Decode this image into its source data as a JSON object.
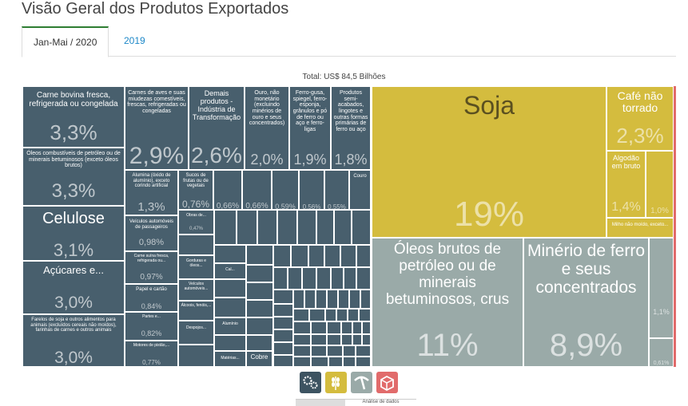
{
  "page": {
    "title": "Visão Geral dos Produtos Exportados",
    "tabs": [
      "Jan-Mai / 2020",
      "2019"
    ],
    "active_tab": 0,
    "total_label": "Total: US$ 84,5 Bilhões",
    "bottom_tab": "Análise de dados"
  },
  "colors": {
    "processed": "#485f6d",
    "agro": "#d4bc3e",
    "mining": "#9aaaa8",
    "other": "#e16b6b",
    "active_tab": "#2e7d32",
    "link": "#1e88c8"
  },
  "icons": [
    {
      "name": "industry-gears-icon",
      "color": "#3d5361"
    },
    {
      "name": "agro-wheat-icon",
      "color": "#d4bc3e"
    },
    {
      "name": "mining-pickaxe-icon",
      "color": "#9aaaa8"
    },
    {
      "name": "other-box-icon",
      "color": "#e16b6b"
    }
  ],
  "chart_data": {
    "type": "treemap",
    "title": "",
    "total": "Total: US$ 84,5 Bilhões",
    "items": [
      {
        "label": "Soja",
        "value": 19,
        "pct": "19%",
        "group": "agro"
      },
      {
        "label": "Café não torrado",
        "value": 2.3,
        "pct": "2,3%",
        "group": "agro"
      },
      {
        "label": "Algodão em bruto",
        "value": 1.4,
        "pct": "1,4%",
        "group": "agro"
      },
      {
        "label": "",
        "value": 1.0,
        "pct": "1,0%",
        "group": "agro"
      },
      {
        "label": "Milho não moído, exceto...",
        "value": 0.5,
        "pct": "",
        "group": "agro"
      },
      {
        "label": "Óleos brutos de petróleo ou de minerais betuminosos, crus",
        "value": 11,
        "pct": "11%",
        "group": "mining"
      },
      {
        "label": "Minério de ferro e seus concentrados",
        "value": 8.9,
        "pct": "8,9%",
        "group": "mining"
      },
      {
        "label": "",
        "value": 1.1,
        "pct": "1,1%",
        "group": "mining"
      },
      {
        "label": "",
        "value": 0.61,
        "pct": "0,61%",
        "group": "mining"
      },
      {
        "label": "Carne bovina fresca, refrigerada ou congelada",
        "value": 3.3,
        "pct": "3,3%",
        "group": "processed"
      },
      {
        "label": "Óleos combustíveis de petróleo ou de minerais betuminosos (exceto óleos brutos)",
        "value": 3.3,
        "pct": "3,3%",
        "group": "processed"
      },
      {
        "label": "Celulose",
        "value": 3.1,
        "pct": "3,1%",
        "group": "processed"
      },
      {
        "label": "Açúcares e...",
        "value": 3.0,
        "pct": "3,0%",
        "group": "processed"
      },
      {
        "label": "Farelos de soja e outros alimentos para animais (excluídos cereais não moídos), farinhas de carnes e outros animais",
        "value": 3.0,
        "pct": "3,0%",
        "group": "processed"
      },
      {
        "label": "Carnes de aves e suas miudezas comestíveis, frescas, refrigeradas ou congeladas",
        "value": 2.9,
        "pct": "2,9%",
        "group": "processed"
      },
      {
        "label": "Demais produtos - Indústria de Transformação",
        "value": 2.6,
        "pct": "2,6%",
        "group": "processed"
      },
      {
        "label": "Ouro, não monetário (excluindo minérios de ouro e seus concentrados)",
        "value": 2.0,
        "pct": "2,0%",
        "group": "processed"
      },
      {
        "label": "Ferro-gusa, spiegel, ferro-esponja, grânulos e pó de ferro ou aço e ferro-ligas",
        "value": 1.9,
        "pct": "1,9%",
        "group": "processed"
      },
      {
        "label": "Produtos semi-acabados, lingotes e outras formas primárias de ferro ou aço",
        "value": 1.8,
        "pct": "1,8%",
        "group": "processed"
      },
      {
        "label": "Alumina (óxido de alumínio), exceto corindo artificial",
        "value": 1.3,
        "pct": "1,3%",
        "group": "processed"
      },
      {
        "label": "Sucos de frutas ou de vegetais",
        "value": 0.76,
        "pct": "0,76%",
        "group": "processed"
      },
      {
        "label": "",
        "value": 0.66,
        "pct": "0,66%",
        "group": "processed"
      },
      {
        "label": "",
        "value": 0.66,
        "pct": "0,66%",
        "group": "processed"
      },
      {
        "label": "",
        "value": 0.59,
        "pct": "0,59%",
        "group": "processed"
      },
      {
        "label": "",
        "value": 0.56,
        "pct": "0,56%",
        "group": "processed"
      },
      {
        "label": "",
        "value": 0.55,
        "pct": "0,55%",
        "group": "processed"
      },
      {
        "label": "Couro",
        "value": 0.5,
        "pct": "",
        "group": "processed"
      },
      {
        "label": "Veículos automóveis de passageiros",
        "value": 0.98,
        "pct": "0,98%",
        "group": "processed"
      },
      {
        "label": "Obras de...",
        "value": 0.47,
        "pct": "0,47%",
        "group": "processed"
      },
      {
        "label": "Carne suína fresca, refrigerada ou...",
        "value": 0.97,
        "pct": "0,97%",
        "group": "processed"
      },
      {
        "label": "Gorduras e óleos...",
        "value": 0.4,
        "pct": "",
        "group": "processed"
      },
      {
        "label": "Cal...",
        "value": 0.3,
        "pct": "",
        "group": "processed"
      },
      {
        "label": "Papel e cartão",
        "value": 0.84,
        "pct": "0,84%",
        "group": "processed"
      },
      {
        "label": "Veículos automóveis...",
        "value": 0.4,
        "pct": "",
        "group": "processed"
      },
      {
        "label": "Partes e...",
        "value": 0.82,
        "pct": "0,82%",
        "group": "processed"
      },
      {
        "label": "Álcoois, fenóis,...",
        "value": 0.4,
        "pct": "",
        "group": "processed"
      },
      {
        "label": "Alumínio",
        "value": 0.3,
        "pct": "",
        "group": "processed"
      },
      {
        "label": "Motores de pistão,...",
        "value": 0.77,
        "pct": "0,77%",
        "group": "processed"
      },
      {
        "label": "Despojos...",
        "value": 0.4,
        "pct": "",
        "group": "processed"
      },
      {
        "label": "Matérias...",
        "value": 0.3,
        "pct": "",
        "group": "processed"
      },
      {
        "label": "Cobre",
        "value": 0.3,
        "pct": "",
        "group": "processed"
      }
    ]
  }
}
